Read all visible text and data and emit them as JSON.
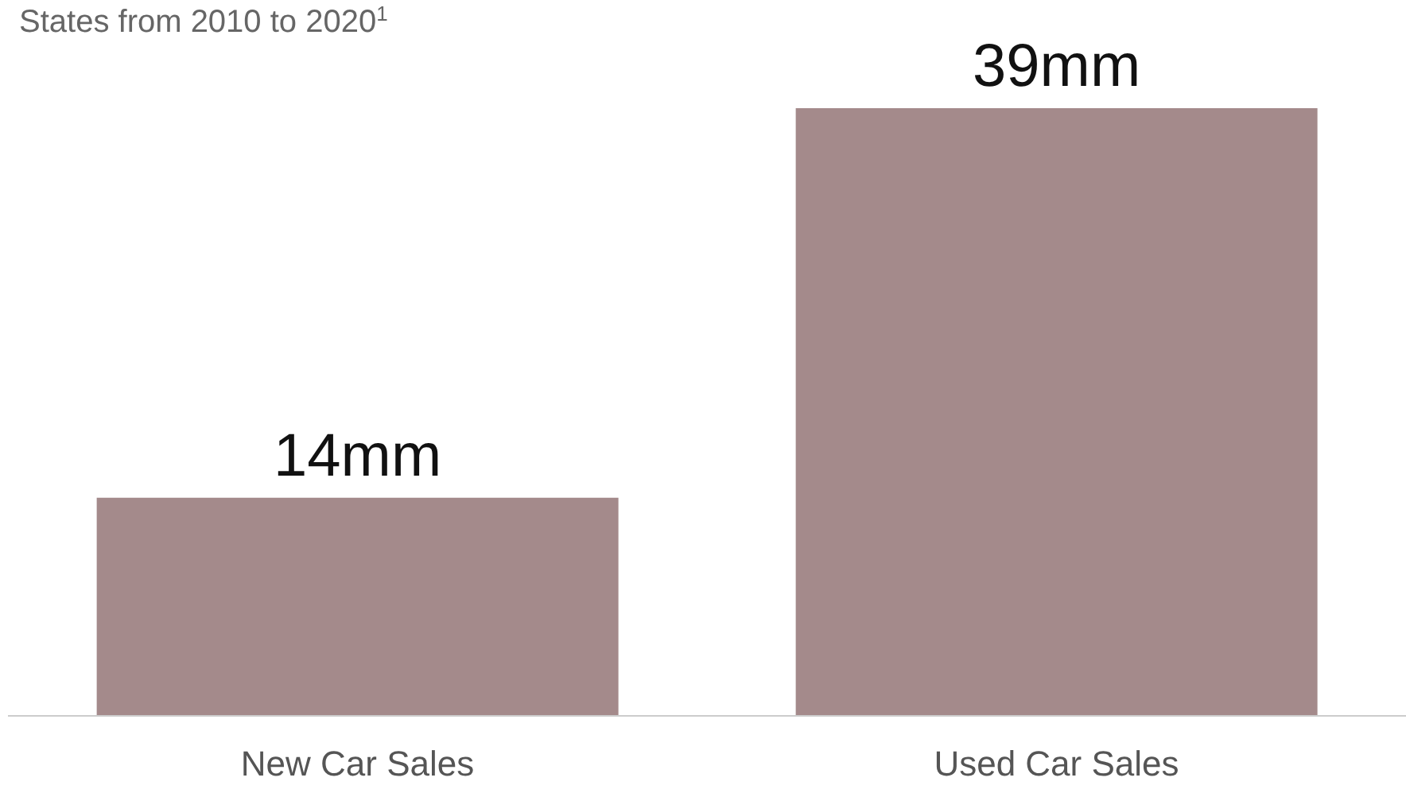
{
  "chart_data": {
    "type": "bar",
    "subtitle": "States from 2010 to 2020$^{1}$",
    "categories": [
      "New Car Sales",
      "Used Car Sales"
    ],
    "values": [
      14,
      39
    ],
    "value_labels": [
      "14mm",
      "39mm"
    ],
    "color": "#a48a8b"
  }
}
